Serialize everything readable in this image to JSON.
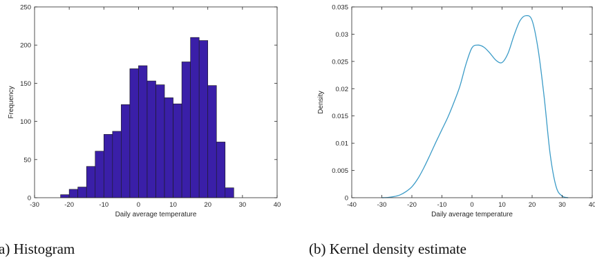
{
  "chart_data": [
    {
      "type": "bar",
      "xlabel": "Daily average temperature",
      "ylabel": "Frequency",
      "caption": "a) Histogram",
      "xlim": [
        -30,
        40
      ],
      "ylim": [
        0,
        250
      ],
      "xticks": [
        -30,
        -20,
        -10,
        0,
        10,
        20,
        30,
        40
      ],
      "yticks": [
        0,
        50,
        100,
        150,
        200,
        250
      ],
      "bin_edges": [
        -22.5,
        -20,
        -17.5,
        -15,
        -12.5,
        -10,
        -7.5,
        -5,
        -2.5,
        0,
        2.5,
        5,
        7.5,
        10,
        12.5,
        15,
        17.5,
        20,
        22.5,
        25,
        27.5,
        30
      ],
      "values": [
        4,
        11,
        14,
        41,
        61,
        83,
        87,
        122,
        169,
        173,
        153,
        148,
        131,
        123,
        178,
        210,
        206,
        147,
        73,
        13,
        0
      ],
      "bar_color": "#3a1fa8",
      "bar_edge_color": "#1a1a1a"
    },
    {
      "type": "line",
      "xlabel": "Daily average temperature",
      "ylabel": "Density",
      "caption": "(b) Kernel density estimate",
      "xlim": [
        -40,
        40
      ],
      "ylim": [
        0,
        0.035
      ],
      "xticks": [
        -40,
        -30,
        -20,
        -10,
        0,
        10,
        20,
        30,
        40
      ],
      "yticks": [
        0,
        0.005,
        0.01,
        0.015,
        0.02,
        0.025,
        0.03,
        0.035
      ],
      "x": [
        -30,
        -28,
        -26,
        -24,
        -22,
        -20,
        -18,
        -16,
        -14,
        -12,
        -10,
        -8,
        -6,
        -4,
        -2,
        0,
        2,
        4,
        6,
        8,
        10,
        12,
        14,
        16,
        18,
        20,
        22,
        24,
        26,
        28,
        30,
        32
      ],
      "y": [
        0,
        5e-05,
        0.0002,
        0.0005,
        0.0011,
        0.002,
        0.0035,
        0.0055,
        0.0078,
        0.0102,
        0.0125,
        0.0148,
        0.0175,
        0.0205,
        0.0245,
        0.0275,
        0.028,
        0.0276,
        0.0265,
        0.0252,
        0.0248,
        0.0265,
        0.0298,
        0.0325,
        0.0334,
        0.0325,
        0.0272,
        0.0185,
        0.008,
        0.002,
        0.0003,
        0
      ],
      "line_color": "#3b9bc7"
    }
  ]
}
